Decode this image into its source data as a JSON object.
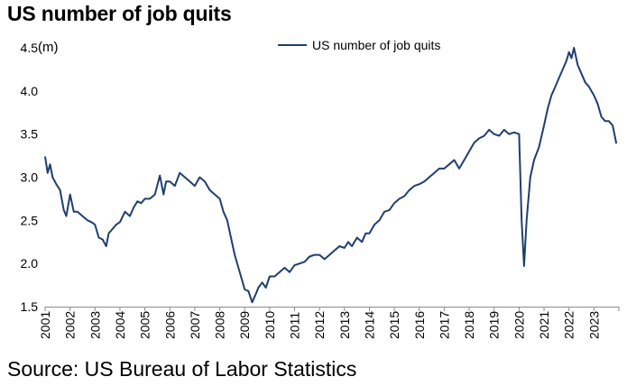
{
  "chart_data": {
    "type": "line",
    "title": "US number of job quits",
    "ylabel": "(m)",
    "xlabel": "",
    "ylim": [
      1.5,
      4.5
    ],
    "xlim": [
      2001,
      2024
    ],
    "yticks": [
      "1.5",
      "2.0",
      "2.5",
      "3.0",
      "3.5",
      "4.0",
      "4.5"
    ],
    "xticks": [
      "2001",
      "2002",
      "2003",
      "2004",
      "2005",
      "2006",
      "2007",
      "2008",
      "2009",
      "2010",
      "2011",
      "2012",
      "2013",
      "2014",
      "2015",
      "2016",
      "2017",
      "2018",
      "2019",
      "2020",
      "2021",
      "2022",
      "2023"
    ],
    "grid": false,
    "legend": "top-center",
    "line_color": "#1f3f6e",
    "series": [
      {
        "name": "US number of job quits",
        "x": [
          2001.0,
          2001.1,
          2001.2,
          2001.3,
          2001.45,
          2001.6,
          2001.75,
          2001.85,
          2002.0,
          2002.15,
          2002.3,
          2002.5,
          2002.7,
          2002.85,
          2003.0,
          2003.15,
          2003.3,
          2003.45,
          2003.55,
          2003.7,
          2003.85,
          2004.0,
          2004.2,
          2004.4,
          2004.55,
          2004.7,
          2004.85,
          2005.0,
          2005.2,
          2005.4,
          2005.6,
          2005.75,
          2005.85,
          2006.0,
          2006.2,
          2006.4,
          2006.6,
          2006.8,
          2007.0,
          2007.2,
          2007.4,
          2007.6,
          2007.8,
          2008.0,
          2008.15,
          2008.3,
          2008.45,
          2008.6,
          2008.75,
          2008.9,
          2009.0,
          2009.15,
          2009.3,
          2009.45,
          2009.55,
          2009.7,
          2009.85,
          2010.0,
          2010.2,
          2010.4,
          2010.6,
          2010.8,
          2011.0,
          2011.2,
          2011.4,
          2011.6,
          2011.8,
          2012.0,
          2012.2,
          2012.4,
          2012.6,
          2012.8,
          2013.0,
          2013.15,
          2013.3,
          2013.5,
          2013.7,
          2013.85,
          2014.0,
          2014.2,
          2014.4,
          2014.6,
          2014.8,
          2015.0,
          2015.2,
          2015.4,
          2015.6,
          2015.8,
          2016.0,
          2016.2,
          2016.4,
          2016.6,
          2016.8,
          2017.0,
          2017.2,
          2017.4,
          2017.6,
          2017.8,
          2018.0,
          2018.2,
          2018.4,
          2018.6,
          2018.8,
          2019.0,
          2019.2,
          2019.4,
          2019.6,
          2019.8,
          2020.0,
          2020.1,
          2020.2,
          2020.3,
          2020.45,
          2020.6,
          2020.8,
          2021.0,
          2021.15,
          2021.3,
          2021.45,
          2021.6,
          2021.75,
          2021.9,
          2022.0,
          2022.1,
          2022.2,
          2022.35,
          2022.5,
          2022.65,
          2022.8,
          2023.0,
          2023.15,
          2023.3,
          2023.45,
          2023.6,
          2023.75,
          2023.9
        ],
        "values": [
          3.24,
          3.05,
          3.15,
          3.0,
          2.92,
          2.85,
          2.62,
          2.55,
          2.8,
          2.6,
          2.6,
          2.55,
          2.5,
          2.48,
          2.45,
          2.3,
          2.28,
          2.2,
          2.35,
          2.4,
          2.45,
          2.48,
          2.6,
          2.55,
          2.65,
          2.72,
          2.7,
          2.75,
          2.75,
          2.8,
          3.02,
          2.8,
          2.95,
          2.95,
          2.9,
          3.05,
          3.0,
          2.95,
          2.9,
          3.0,
          2.95,
          2.85,
          2.8,
          2.75,
          2.6,
          2.5,
          2.3,
          2.1,
          1.95,
          1.8,
          1.7,
          1.68,
          1.55,
          1.65,
          1.72,
          1.78,
          1.72,
          1.85,
          1.85,
          1.9,
          1.95,
          1.9,
          1.98,
          2.0,
          2.02,
          2.08,
          2.1,
          2.1,
          2.05,
          2.1,
          2.15,
          2.2,
          2.18,
          2.25,
          2.2,
          2.3,
          2.25,
          2.35,
          2.35,
          2.45,
          2.5,
          2.6,
          2.62,
          2.7,
          2.75,
          2.78,
          2.85,
          2.9,
          2.92,
          2.95,
          3.0,
          3.05,
          3.1,
          3.1,
          3.15,
          3.2,
          3.1,
          3.2,
          3.3,
          3.4,
          3.45,
          3.48,
          3.55,
          3.5,
          3.48,
          3.55,
          3.5,
          3.52,
          3.5,
          2.5,
          1.97,
          2.5,
          3.0,
          3.2,
          3.35,
          3.6,
          3.8,
          3.95,
          4.05,
          4.15,
          4.25,
          4.35,
          4.45,
          4.38,
          4.5,
          4.3,
          4.2,
          4.1,
          4.05,
          3.95,
          3.85,
          3.7,
          3.65,
          3.65,
          3.6,
          3.39
        ]
      }
    ]
  },
  "footer": {
    "source": "Source: US Bureau of Labor Statistics"
  }
}
